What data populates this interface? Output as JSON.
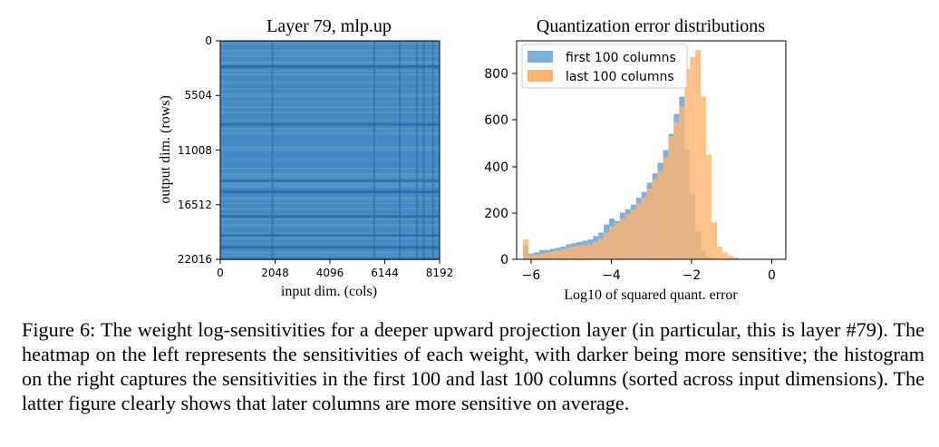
{
  "figure": {
    "heatmap": {
      "title": "Layer 79, mlp.up",
      "xlabel": "input dim. (cols)",
      "ylabel": "output dim. (rows)",
      "xticks": [
        "0",
        "2048",
        "4096",
        "6144",
        "8192"
      ],
      "yticks": [
        "0",
        "5504",
        "11008",
        "16512",
        "22016"
      ],
      "base_color": "#4a90c8"
    },
    "histogram": {
      "title": "Quantization error distributions",
      "xlabel": "Log10 of squared quant. error",
      "xticks": [
        "−6",
        "−4",
        "−2",
        "0"
      ],
      "yticks": [
        "0",
        "200",
        "400",
        "600",
        "800"
      ],
      "legend": [
        "first 100 columns",
        "last 100 columns"
      ],
      "colors": {
        "first": "#7fb0d8",
        "last": "#fdb470",
        "overlap": "#c99a73"
      }
    }
  },
  "chart_data": [
    {
      "type": "heatmap",
      "title": "Layer 79, mlp.up",
      "xlabel": "input dim. (cols)",
      "ylabel": "output dim. (rows)",
      "xlim": [
        0,
        8192
      ],
      "ylim": [
        0,
        22016
      ],
      "xticks": [
        0,
        2048,
        4096,
        6144,
        8192
      ],
      "yticks": [
        0,
        5504,
        11008,
        16512,
        22016
      ],
      "dark_rows": [
        2600,
        8400,
        14100,
        15200,
        17700,
        19600,
        20800
      ],
      "dark_cols": [
        1950,
        5750,
        6700,
        7350,
        7600,
        7950
      ]
    },
    {
      "type": "histogram",
      "title": "Quantization error distributions",
      "xlabel": "Log10 of squared quant. error",
      "ylabel": "",
      "xlim": [
        -6.2,
        0.3
      ],
      "ylim": [
        0,
        940
      ],
      "legend": "top-left",
      "bin_width": 0.13,
      "series": [
        {
          "name": "first 100 columns",
          "color": "#1f77b4",
          "x": [
            -5.98,
            -5.85,
            -5.72,
            -5.59,
            -5.46,
            -5.33,
            -5.2,
            -5.07,
            -4.94,
            -4.81,
            -4.68,
            -4.55,
            -4.42,
            -4.29,
            -4.16,
            -4.03,
            -3.9,
            -3.77,
            -3.64,
            -3.51,
            -3.38,
            -3.25,
            -3.12,
            -2.99,
            -2.86,
            -2.73,
            -2.6,
            -2.47,
            -2.34,
            -2.21,
            -2.08,
            -1.95,
            -1.82,
            -1.69,
            -1.56,
            -1.43,
            -1.3
          ],
          "values": [
            60,
            25,
            30,
            40,
            40,
            45,
            50,
            55,
            65,
            70,
            75,
            80,
            85,
            100,
            115,
            150,
            175,
            165,
            200,
            215,
            235,
            265,
            290,
            330,
            370,
            415,
            470,
            540,
            625,
            700,
            470,
            280,
            120,
            40,
            10,
            5,
            2
          ]
        },
        {
          "name": "last 100 columns",
          "color": "#ff7f0e",
          "x": [
            -5.98,
            -5.85,
            -5.72,
            -5.59,
            -5.46,
            -5.33,
            -5.2,
            -5.07,
            -4.94,
            -4.81,
            -4.68,
            -4.55,
            -4.42,
            -4.29,
            -4.16,
            -4.03,
            -3.9,
            -3.77,
            -3.64,
            -3.51,
            -3.38,
            -3.25,
            -3.12,
            -2.99,
            -2.86,
            -2.73,
            -2.6,
            -2.47,
            -2.34,
            -2.21,
            -2.08,
            -1.95,
            -1.82,
            -1.69,
            -1.56,
            -1.43,
            -1.3,
            -1.17,
            -1.04,
            -0.91,
            -0.78
          ],
          "values": [
            85,
            20,
            20,
            25,
            30,
            35,
            40,
            45,
            50,
            55,
            60,
            60,
            65,
            75,
            90,
            115,
            140,
            155,
            175,
            195,
            215,
            240,
            265,
            305,
            345,
            380,
            440,
            530,
            590,
            660,
            820,
            870,
            900,
            700,
            450,
            160,
            55,
            30,
            15,
            8,
            3
          ]
        }
      ]
    }
  ],
  "caption": "Figure 6: The weight log-sensitivities for a deeper upward projection layer (in particular, this is layer #79). The heatmap on the left represents the sensitivities of each weight, with darker being more sensitive; the histogram on the right captures the sensitivities in the first 100 and last 100 columns (sorted across input dimensions). The latter figure clearly shows that later columns are more sensitive on average."
}
